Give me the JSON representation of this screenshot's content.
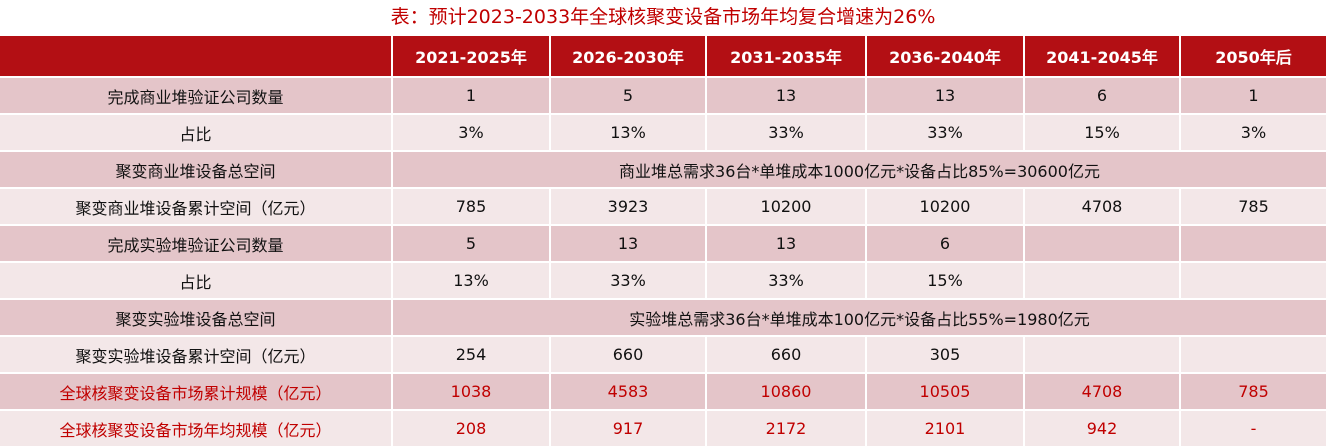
{
  "title": "表：预计2023-2033年全球核聚变设备市场年均复合增速为26%",
  "table": {
    "headers": [
      "",
      "2021-2025年",
      "2026-2030年",
      "2031-2035年",
      "2036-2040年",
      "2041-2045年",
      "2050年后"
    ],
    "rows": [
      {
        "label": "完成商业堆验证公司数量",
        "cells": [
          "1",
          "5",
          "13",
          "13",
          "6",
          "1"
        ]
      },
      {
        "label": "占比",
        "cells": [
          "3%",
          "13%",
          "33%",
          "33%",
          "15%",
          "3%"
        ]
      },
      {
        "label": "聚变商业堆设备总空间",
        "merged": "商业堆总需求36台*单堆成本1000亿元*设备占比85%=30600亿元"
      },
      {
        "label": "聚变商业堆设备累计空间（亿元）",
        "cells": [
          "785",
          "3923",
          "10200",
          "10200",
          "4708",
          "785"
        ]
      },
      {
        "label": "完成实验堆验证公司数量",
        "cells": [
          "5",
          "13",
          "13",
          "6",
          "",
          ""
        ]
      },
      {
        "label": "占比",
        "cells": [
          "13%",
          "33%",
          "33%",
          "15%",
          "",
          ""
        ]
      },
      {
        "label": "聚变实验堆设备总空间",
        "merged": "实验堆总需求36台*单堆成本100亿元*设备占比55%=1980亿元"
      },
      {
        "label": "聚变实验堆设备累计空间（亿元）",
        "cells": [
          "254",
          "660",
          "660",
          "305",
          "",
          ""
        ]
      },
      {
        "label": "全球核聚变设备市场累计规模（亿元）",
        "cells": [
          "1038",
          "4583",
          "10860",
          "10505",
          "4708",
          "785"
        ]
      },
      {
        "label": "全球核聚变设备市场年均规模（亿元）",
        "cells": [
          "208",
          "917",
          "2172",
          "2101",
          "942",
          "-"
        ]
      }
    ]
  },
  "colors": {
    "header_bg": "#b30f14",
    "row_dark": "#e4c5c9",
    "row_light": "#f3e7e8",
    "accent_text": "#c00000"
  }
}
